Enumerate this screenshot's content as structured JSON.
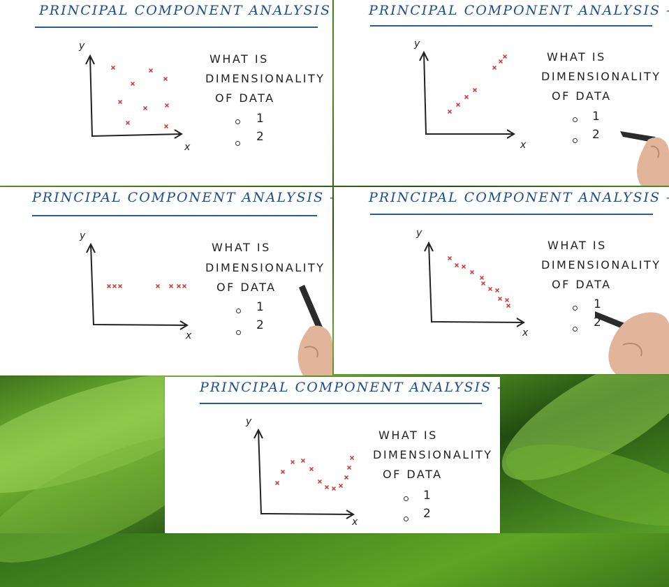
{
  "panels": [
    {
      "title": "PRINCIPAL COMPONENT ANALYSIS – PCA",
      "question": [
        "WHAT IS",
        "DIMENSIONALITY",
        "OF DATA"
      ],
      "options": [
        "1",
        "2"
      ],
      "axis": {
        "x": "x",
        "y": "y"
      },
      "pattern": "scatter"
    },
    {
      "title": "PRINCIPAL COMPONENT ANALYSIS – PCA",
      "question": [
        "WHAT IS",
        "DIMENSIONALITY",
        "OF DATA"
      ],
      "options": [
        "1",
        "2"
      ],
      "axis": {
        "x": "x",
        "y": "y"
      },
      "pattern": "rising line"
    },
    {
      "title": "PRINCIPAL COMPONENT ANALYSIS – PCA",
      "question": [
        "WHAT IS",
        "DIMENSIONALITY",
        "OF DATA"
      ],
      "options": [
        "1",
        "2"
      ],
      "axis": {
        "x": "x",
        "y": "y"
      },
      "pattern": "horizontal line"
    },
    {
      "title": "PRINCIPAL COMPONENT ANALYSIS – PCA",
      "question": [
        "WHAT IS",
        "DIMENSIONALITY",
        "OF DATA"
      ],
      "options": [
        "1",
        "2"
      ],
      "axis": {
        "x": "x",
        "y": "y"
      },
      "pattern": "falling line"
    },
    {
      "title": "PRINCIPAL COMPONENT ANALYSIS – PCA",
      "question": [
        "WHAT IS",
        "DIMENSIONALITY",
        "OF DATA"
      ],
      "options": [
        "1",
        "2"
      ],
      "axis": {
        "x": "x",
        "y": "y"
      },
      "pattern": "wave"
    }
  ],
  "colors": {
    "ink": "#1d4d8c",
    "marks": "#c8342e",
    "text": "#222222"
  },
  "icons": {
    "hand": "hand-holding-pen-icon",
    "mark": "x-mark-icon"
  }
}
